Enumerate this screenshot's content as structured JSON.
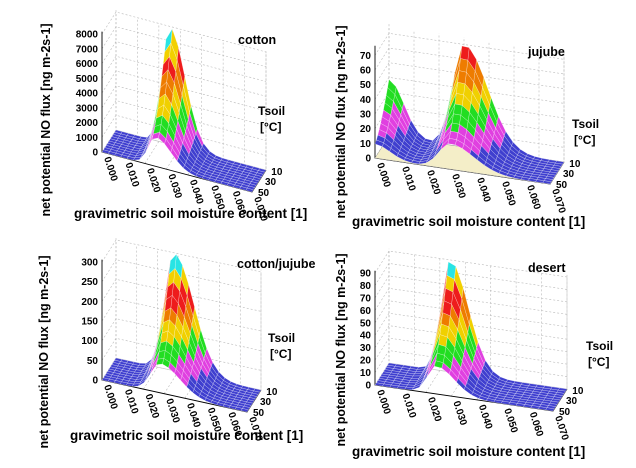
{
  "figure": {
    "ylabel": "net potential NO flux [ng m-2s-1]",
    "xlabel": "gravimetric soil moisture content [1]",
    "tlabel_main": "Tsoil",
    "tlabel_unit": "[°C]",
    "band_colors": [
      "#3f3fcf",
      "#e040e0",
      "#22dd22",
      "#f0d000",
      "#ee7c00",
      "#ee1c1c",
      "#f2d000",
      "#28e4e4"
    ],
    "floor_color": "#f4eec8"
  },
  "chart_data": [
    {
      "type": "surface",
      "title": "cotton",
      "x": [
        0.0,
        0.01,
        0.02,
        0.03,
        0.04,
        0.05,
        0.06,
        0.07
      ],
      "x_ticks": [
        "0.000",
        "0.010",
        "0.020",
        "0.030",
        "0.040",
        "0.050",
        "0.060",
        "0.070"
      ],
      "z_ticks": [
        "0",
        "1000",
        "2000",
        "3000",
        "4000",
        "5000",
        "6000",
        "7000",
        "8000"
      ],
      "t_ticks": [
        "10",
        "30",
        "50"
      ],
      "zlim": [
        0,
        8000
      ],
      "peak": {
        "x": 0.025,
        "t": 50,
        "z": 8000
      },
      "floor": false
    },
    {
      "type": "surface",
      "title": "jujube",
      "x": [
        0.0,
        0.01,
        0.02,
        0.03,
        0.04,
        0.05,
        0.06,
        0.07
      ],
      "x_ticks": [
        "0.000",
        "0.010",
        "0.020",
        "0.030",
        "0.040",
        "0.050",
        "0.060",
        "0.070"
      ],
      "z_ticks": [
        "0",
        "10",
        "20",
        "30",
        "40",
        "50",
        "60",
        "70"
      ],
      "t_ticks": [
        "10",
        "30",
        "50"
      ],
      "zlim": [
        0,
        75
      ],
      "peak": {
        "x": 0.03,
        "t": 50,
        "z": 70
      },
      "floor": true
    },
    {
      "type": "surface",
      "title": "cotton/jujube",
      "x": [
        0.0,
        0.01,
        0.02,
        0.03,
        0.04,
        0.05,
        0.06,
        0.07
      ],
      "x_ticks": [
        "0.000",
        "0.010",
        "0.020",
        "0.030",
        "0.040",
        "0.050",
        "0.060",
        "0.070"
      ],
      "z_ticks": [
        "0",
        "50",
        "100",
        "150",
        "200",
        "250",
        "300"
      ],
      "t_ticks": [
        "10",
        "30",
        "50"
      ],
      "zlim": [
        0,
        300
      ],
      "peak": {
        "x": 0.028,
        "t": 50,
        "z": 300
      },
      "floor": false
    },
    {
      "type": "surface",
      "title": "desert",
      "x": [
        0.0,
        0.01,
        0.02,
        0.03,
        0.04,
        0.05,
        0.06,
        0.07
      ],
      "x_ticks": [
        "0.000",
        "0.010",
        "0.020",
        "0.030",
        "0.040",
        "0.050",
        "0.060",
        "0.070"
      ],
      "z_ticks": [
        "0",
        "10",
        "20",
        "30",
        "40",
        "50",
        "60",
        "70",
        "80",
        "90"
      ],
      "t_ticks": [
        "10",
        "30",
        "50"
      ],
      "zlim": [
        0,
        90
      ],
      "peak": {
        "x": 0.024,
        "t": 50,
        "z": 90
      },
      "floor": false
    }
  ]
}
